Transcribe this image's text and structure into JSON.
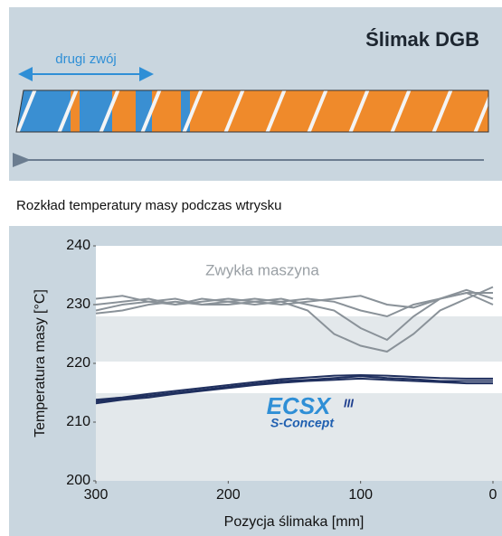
{
  "diagram": {
    "title": "Ślimak DGB",
    "label": "drugi zwój"
  },
  "chart_data": {
    "type": "line",
    "title": "Rozkład temperatury masy podczas wtrysku",
    "x_label": "Pozycja ślimaka [mm]",
    "y_label": "Temperatura masy [°C]",
    "annotation": "Zwykła maszyna",
    "logo": {
      "text": "ECSX",
      "mark": "III",
      "subtitle": "S-Concept"
    },
    "xlim": [
      300,
      0
    ],
    "xticks": [
      300,
      200,
      100,
      0
    ],
    "ylim": [
      200,
      240
    ],
    "yticks": [
      200,
      210,
      220,
      230,
      240
    ],
    "x": [
      300,
      280,
      260,
      240,
      220,
      200,
      180,
      160,
      140,
      120,
      100,
      80,
      60,
      40,
      20,
      0
    ],
    "series": [
      {
        "color": "#8a9299",
        "values": [
          230,
          230.5,
          231,
          230,
          230.5,
          231,
          230.5,
          231,
          230,
          229,
          226,
          224,
          228,
          231,
          232,
          232
        ]
      },
      {
        "color": "#8a9299",
        "values": [
          229,
          230,
          230.5,
          231,
          230,
          230.5,
          231,
          230.5,
          229,
          225,
          223,
          222,
          225,
          229,
          231,
          233
        ]
      },
      {
        "color": "#8a9299",
        "values": [
          231,
          231.5,
          230.5,
          230,
          231,
          230.5,
          230,
          230.5,
          231,
          230.5,
          229,
          228,
          230,
          231,
          232,
          230
        ]
      },
      {
        "color": "#8a9299",
        "values": [
          228.5,
          229,
          230,
          230.5,
          230,
          230,
          230.5,
          230,
          230.5,
          231,
          231.5,
          230,
          229.5,
          231,
          232.5,
          231
        ]
      },
      {
        "color": "#1f2f5e",
        "values": [
          213.5,
          214,
          214.5,
          215,
          215.5,
          216,
          216.5,
          217,
          217.2,
          217.5,
          217.8,
          217.5,
          217.3,
          217,
          217,
          217
        ]
      },
      {
        "color": "#1f2f5e",
        "values": [
          213.2,
          213.8,
          214.2,
          214.8,
          215.3,
          215.8,
          216.3,
          216.7,
          217,
          217.2,
          217.4,
          217.2,
          217,
          216.8,
          216.6,
          216.6
        ]
      },
      {
        "color": "#1f2f5e",
        "values": [
          213.8,
          214.2,
          214.8,
          215.3,
          215.8,
          216.3,
          216.8,
          217.3,
          217.6,
          217.9,
          218,
          217.9,
          217.7,
          217.5,
          217.4,
          217.4
        ]
      }
    ]
  }
}
